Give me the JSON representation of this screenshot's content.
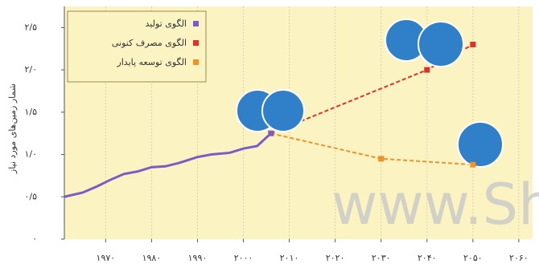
{
  "chart_data": {
    "type": "line",
    "y_label": "شمار زمین‌های مورد نیاز",
    "watermark": "www.Shi",
    "xlim": [
      1961,
      2063
    ],
    "ylim": [
      0,
      2.75
    ],
    "xticks": [
      {
        "value": 1970,
        "label": "۱۹۷۰"
      },
      {
        "value": 1980,
        "label": "۱۹۸۰"
      },
      {
        "value": 1990,
        "label": "۱۹۹۰"
      },
      {
        "value": 2000,
        "label": "۲۰۰۰"
      },
      {
        "value": 2010,
        "label": "۲۰۱۰"
      },
      {
        "value": 2020,
        "label": "۲۰۲۰"
      },
      {
        "value": 2030,
        "label": "۲۰۳۰"
      },
      {
        "value": 2040,
        "label": "۲۰۴۰"
      },
      {
        "value": 2050,
        "label": "۲۰۵۰"
      },
      {
        "value": 2060,
        "label": "۲۰۶۰"
      }
    ],
    "yticks": [
      {
        "value": 0,
        "label": "۰"
      },
      {
        "value": 0.5,
        "label": "۰/۵"
      },
      {
        "value": 1,
        "label": "۱/۰"
      },
      {
        "value": 1.5,
        "label": "۱/۵"
      },
      {
        "value": 2,
        "label": "۲/۰"
      },
      {
        "value": 2.5,
        "label": "۲/۵"
      }
    ],
    "grid": true,
    "series": [
      {
        "name": "الگوی تولید",
        "color": "#7a5cc8",
        "dash": false,
        "x": [
          1961,
          1965,
          1968,
          1971,
          1974,
          1977,
          1980,
          1983,
          1986,
          1990,
          1993,
          1997,
          2000,
          2003,
          2006
        ],
        "values": [
          0.5,
          0.55,
          0.62,
          0.7,
          0.77,
          0.8,
          0.85,
          0.86,
          0.9,
          0.97,
          1.0,
          1.02,
          1.07,
          1.1,
          1.25
        ]
      },
      {
        "name": "الگوی مصرف کنونی",
        "color": "#e0302a",
        "dash": true,
        "x": [
          2006,
          2040,
          2050
        ],
        "values": [
          1.25,
          2.0,
          2.3
        ]
      },
      {
        "name": "الگوی توسعه پایدار",
        "color": "#f0922a",
        "dash": true,
        "x": [
          2006,
          2030,
          2050
        ],
        "values": [
          1.25,
          0.95,
          0.88
        ]
      }
    ]
  }
}
